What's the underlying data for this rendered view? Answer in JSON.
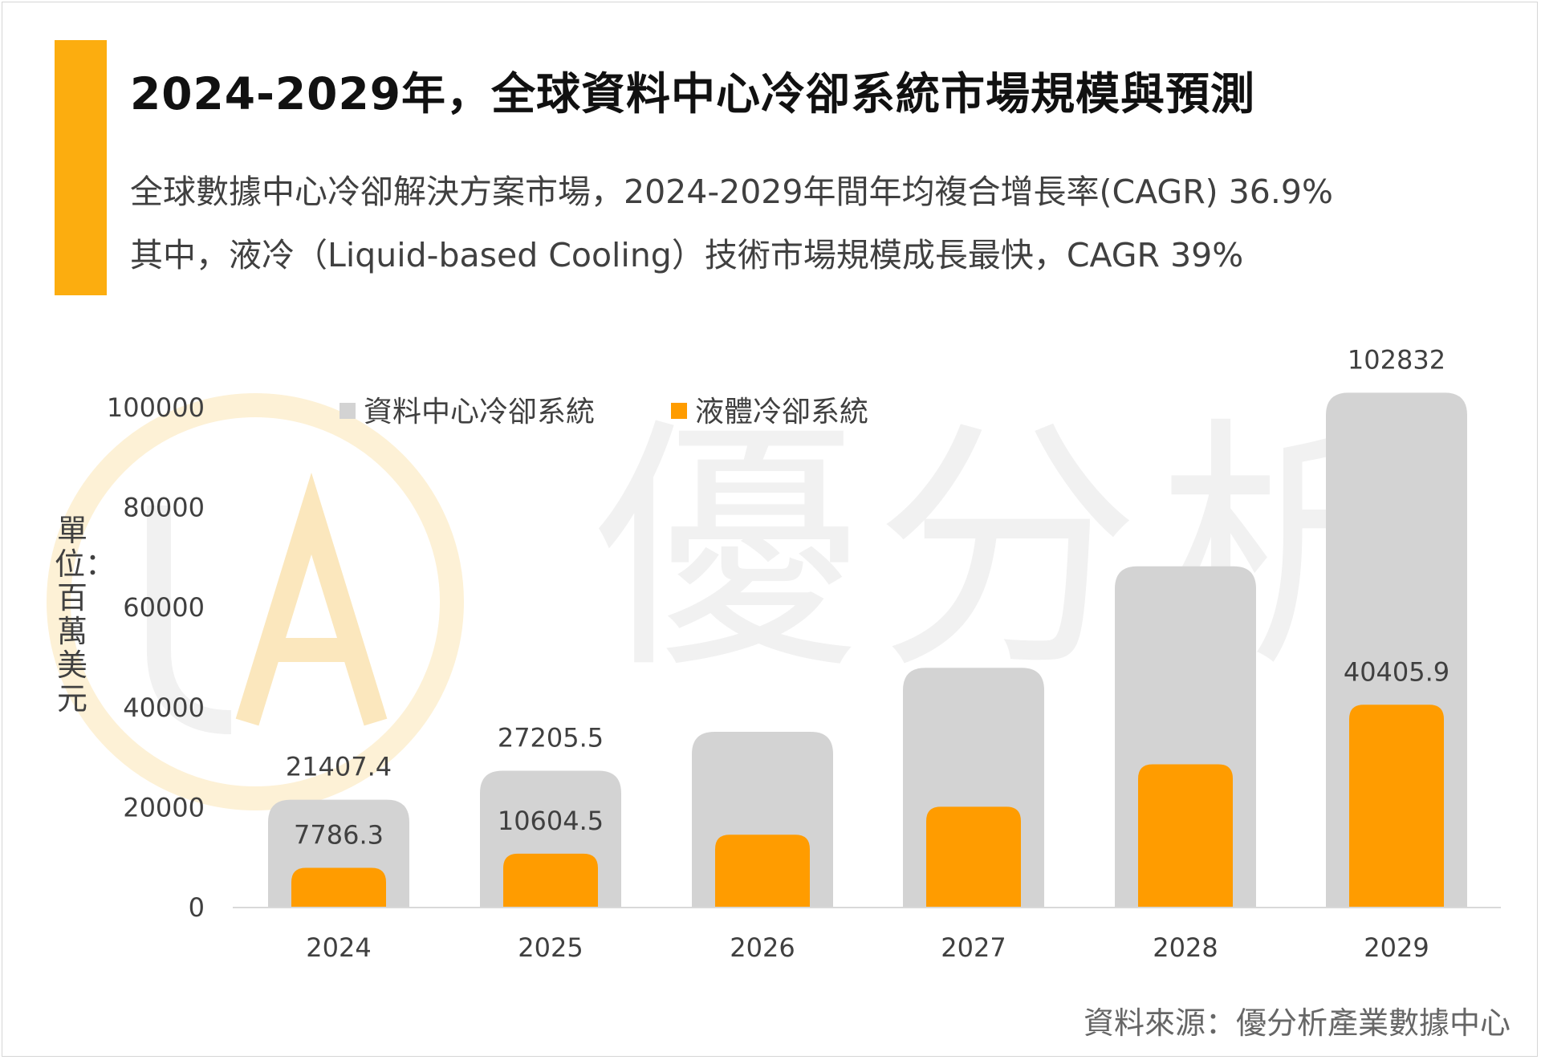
{
  "title": "2024-2029年，全球資料中心冷卻系統市場規模與預測",
  "subtitle_lines": [
    "全球數據中心冷卻解決方案市場，2024-2029年間年均複合增長率(CAGR) 36.9%",
    "其中，液冷（Liquid-based Cooling）技術市場規模成長最快，CAGR 39%"
  ],
  "unit_label": "單位：百萬美元",
  "source": "資料來源：優分析產業數據中心",
  "watermark_text": "優分析",
  "colors": {
    "accent": "#fcad0f",
    "total_bar": "#d3d3d3",
    "liquid_bar": "#ff9c00",
    "text": "#404040"
  },
  "chart_data": {
    "type": "bar",
    "categories": [
      "2024",
      "2025",
      "2026",
      "2027",
      "2028",
      "2029"
    ],
    "ylim": [
      0,
      100000
    ],
    "yticks": [
      "0",
      "20000",
      "40000",
      "60000",
      "80000",
      "100000"
    ],
    "legend_position": "top-left",
    "grid": false,
    "series": [
      {
        "name": "資料中心冷卻系統",
        "values": [
          21407.4,
          27205.5,
          35000,
          47800,
          68100,
          102832
        ],
        "labels": [
          "21407.4",
          "27205.5",
          "",
          "",
          "",
          "102832"
        ]
      },
      {
        "name": "液體冷卻系統",
        "values": [
          7786.3,
          10604.5,
          14400,
          20000,
          28500,
          40405.9
        ],
        "labels": [
          "7786.3",
          "10604.5",
          "",
          "",
          "",
          "40405.9"
        ]
      }
    ]
  }
}
